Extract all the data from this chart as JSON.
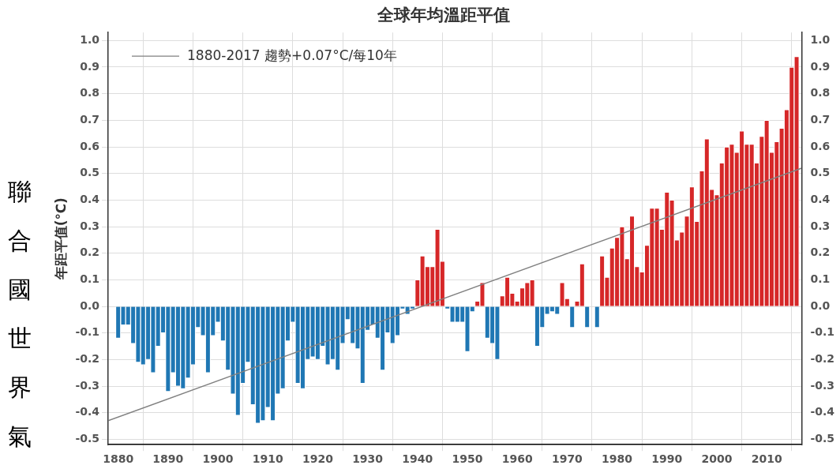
{
  "chart_data": {
    "type": "bar",
    "title": "全球年均溫距平值",
    "ylabel": "年距平值(℃)",
    "annotations": [
      "聯合國世界氣"
    ],
    "x": [
      1880,
      1881,
      1882,
      1883,
      1884,
      1885,
      1886,
      1887,
      1888,
      1889,
      1890,
      1891,
      1892,
      1893,
      1894,
      1895,
      1896,
      1897,
      1898,
      1899,
      1900,
      1901,
      1902,
      1903,
      1904,
      1905,
      1906,
      1907,
      1908,
      1909,
      1910,
      1911,
      1912,
      1913,
      1914,
      1915,
      1916,
      1917,
      1918,
      1919,
      1920,
      1921,
      1922,
      1923,
      1924,
      1925,
      1926,
      1927,
      1928,
      1929,
      1930,
      1931,
      1932,
      1933,
      1934,
      1935,
      1936,
      1937,
      1938,
      1939,
      1940,
      1941,
      1942,
      1943,
      1944,
      1945,
      1946,
      1947,
      1948,
      1949,
      1950,
      1951,
      1952,
      1953,
      1954,
      1955,
      1956,
      1957,
      1958,
      1959,
      1960,
      1961,
      1962,
      1963,
      1964,
      1965,
      1966,
      1967,
      1968,
      1969,
      1970,
      1971,
      1972,
      1973,
      1974,
      1975,
      1976,
      1977,
      1978,
      1979,
      1980,
      1981,
      1982,
      1983,
      1984,
      1985,
      1986,
      1987,
      1988,
      1989,
      1990,
      1991,
      1992,
      1993,
      1994,
      1995,
      1996,
      1997,
      1998,
      1999,
      2000,
      2001,
      2002,
      2003,
      2004,
      2005,
      2006,
      2007,
      2008,
      2009,
      2010,
      2011,
      2012,
      2013,
      2014,
      2015,
      2016
    ],
    "xlim": [
      1878,
      2017
    ],
    "xticks": [
      1880,
      1890,
      1900,
      1910,
      1920,
      1930,
      1940,
      1950,
      1960,
      1970,
      1980,
      1990,
      2000,
      2010
    ],
    "ylim": [
      -0.52,
      1.03
    ],
    "yticks": [
      {
        "value": -0.5,
        "label": "-0.5"
      },
      {
        "value": -0.4,
        "label": "-0.4"
      },
      {
        "value": -0.3,
        "label": "-0.3"
      },
      {
        "value": -0.2,
        "label": "-0.2"
      },
      {
        "value": -0.1,
        "label": "-0.1"
      },
      {
        "value": 0,
        "label": "0.0"
      },
      {
        "value": 0.1,
        "label": "0.1"
      },
      {
        "value": 0.2,
        "label": "0.2"
      },
      {
        "value": 0.3,
        "label": "0.3"
      },
      {
        "value": 0.4,
        "label": "0.4"
      },
      {
        "value": 0.5,
        "label": "0.5"
      },
      {
        "value": 0.6,
        "label": "0.6"
      },
      {
        "value": 0.7,
        "label": "0.7"
      },
      {
        "value": 0.8,
        "label": "0.8"
      },
      {
        "value": 0.9,
        "label": "0.9"
      },
      {
        "value": 1.0,
        "label": "1.0"
      }
    ],
    "y2lim": [
      -0.52,
      1.03
    ],
    "y2ticks": [
      {
        "value": -0.5,
        "label": "-0.5"
      },
      {
        "value": -0.4,
        "label": "-0.4"
      },
      {
        "value": -0.3,
        "label": "-0.3"
      },
      {
        "value": -0.2,
        "label": "-0.2"
      },
      {
        "value": -0.1,
        "label": "-0.1"
      },
      {
        "value": 0,
        "label": "0.0"
      },
      {
        "value": 0.1,
        "label": "0.1"
      },
      {
        "value": 0.2,
        "label": "0.2"
      },
      {
        "value": 0.3,
        "label": "0.3"
      },
      {
        "value": 0.4,
        "label": "0.4"
      },
      {
        "value": 0.5,
        "label": "0.5"
      },
      {
        "value": 0.6,
        "label": "0.6"
      },
      {
        "value": 0.7,
        "label": "0.7"
      },
      {
        "value": 0.8,
        "label": "0.8"
      },
      {
        "value": 0.9,
        "label": "0.9"
      },
      {
        "value": 1.0,
        "label": "1.0"
      }
    ],
    "grid": true,
    "legend": "top left",
    "series": [
      {
        "values": [
          -0.12,
          -0.07,
          -0.07,
          -0.14,
          -0.21,
          -0.22,
          -0.2,
          -0.25,
          -0.15,
          -0.1,
          -0.32,
          -0.25,
          -0.3,
          -0.31,
          -0.27,
          -0.22,
          -0.08,
          -0.11,
          -0.25,
          -0.11,
          -0.06,
          -0.13,
          -0.24,
          -0.33,
          -0.41,
          -0.29,
          -0.21,
          -0.37,
          -0.44,
          -0.43,
          -0.38,
          -0.43,
          -0.33,
          -0.31,
          -0.13,
          -0.06,
          -0.29,
          -0.31,
          -0.2,
          -0.19,
          -0.2,
          -0.15,
          -0.22,
          -0.2,
          -0.24,
          -0.14,
          -0.05,
          -0.14,
          -0.16,
          -0.29,
          -0.09,
          -0.07,
          -0.12,
          -0.24,
          -0.1,
          -0.14,
          -0.11,
          -0.01,
          -0.03,
          -0.01,
          0.1,
          0.19,
          0.15,
          0.15,
          0.29,
          0.17,
          -0.01,
          -0.06,
          -0.06,
          -0.06,
          -0.17,
          -0.02,
          0.02,
          0.09,
          -0.12,
          -0.14,
          -0.2,
          0.04,
          0.11,
          0.05,
          0.02,
          0.07,
          0.09,
          0.1,
          -0.15,
          -0.08,
          -0.03,
          -0.02,
          -0.03,
          0.09,
          0.03,
          -0.08,
          0.02,
          0.16,
          -0.08,
          0.0,
          -0.08,
          0.19,
          0.11,
          0.22,
          0.26,
          0.3,
          0.18,
          0.34,
          0.15,
          0.13,
          0.23,
          0.37,
          0.37,
          0.29,
          0.43,
          0.4,
          0.25,
          0.28,
          0.34,
          0.45,
          0.32,
          0.51,
          0.63,
          0.44,
          0.42,
          0.54,
          0.6,
          0.61,
          0.58,
          0.66,
          0.61,
          0.61,
          0.54,
          0.64,
          0.7,
          0.58,
          0.62,
          0.67,
          0.74,
          0.9,
          0.94
        ],
        "colors": [
          "#1f77b4",
          "#1f77b4",
          "#1f77b4",
          "#1f77b4",
          "#1f77b4",
          "#1f77b4",
          "#1f77b4",
          "#1f77b4",
          "#1f77b4",
          "#1f77b4",
          "#1f77b4",
          "#1f77b4",
          "#1f77b4",
          "#1f77b4",
          "#1f77b4",
          "#1f77b4",
          "#1f77b4",
          "#1f77b4",
          "#1f77b4",
          "#1f77b4",
          "#1f77b4",
          "#1f77b4",
          "#1f77b4",
          "#1f77b4",
          "#1f77b4",
          "#1f77b4",
          "#1f77b4",
          "#1f77b4",
          "#1f77b4",
          "#1f77b4",
          "#1f77b4",
          "#1f77b4",
          "#1f77b4",
          "#1f77b4",
          "#1f77b4",
          "#1f77b4",
          "#1f77b4",
          "#1f77b4",
          "#1f77b4",
          "#1f77b4",
          "#1f77b4",
          "#1f77b4",
          "#1f77b4",
          "#1f77b4",
          "#1f77b4",
          "#1f77b4",
          "#1f77b4",
          "#1f77b4",
          "#1f77b4",
          "#1f77b4",
          "#1f77b4",
          "#1f77b4",
          "#1f77b4",
          "#1f77b4",
          "#1f77b4",
          "#1f77b4",
          "#1f77b4",
          "#1f77b4",
          "#1f77b4",
          "#1f77b4",
          "#d62728",
          "#d62728",
          "#d62728",
          "#d62728",
          "#d62728",
          "#d62728",
          "#1f77b4",
          "#1f77b4",
          "#1f77b4",
          "#1f77b4",
          "#1f77b4",
          "#1f77b4",
          "#d62728",
          "#d62728",
          "#1f77b4",
          "#1f77b4",
          "#1f77b4",
          "#d62728",
          "#d62728",
          "#d62728",
          "#d62728",
          "#d62728",
          "#d62728",
          "#d62728",
          "#1f77b4",
          "#1f77b4",
          "#1f77b4",
          "#1f77b4",
          "#1f77b4",
          "#d62728",
          "#d62728",
          "#1f77b4",
          "#d62728",
          "#d62728",
          "#1f77b4",
          "#1f77b4",
          "#1f77b4",
          "#d62728",
          "#d62728",
          "#d62728",
          "#d62728",
          "#d62728",
          "#d62728",
          "#d62728",
          "#d62728",
          "#d62728",
          "#d62728",
          "#d62728",
          "#d62728",
          "#d62728",
          "#d62728",
          "#d62728",
          "#d62728",
          "#d62728",
          "#d62728",
          "#d62728",
          "#d62728",
          "#d62728",
          "#d62728",
          "#d62728",
          "#d62728",
          "#d62728",
          "#d62728",
          "#d62728",
          "#d62728",
          "#d62728",
          "#d62728",
          "#d62728",
          "#d62728",
          "#d62728",
          "#d62728",
          "#d62728",
          "#d62728",
          "#d62728",
          "#d62728",
          "#d62728",
          "#d62728"
        ]
      },
      {
        "type": "line",
        "name": "1880-2017 趨勢+0.07°C/每10年",
        "color": "#808080",
        "x": [
          1878,
          2017
        ],
        "values": [
          -0.43,
          0.52
        ],
        "marker": "none"
      }
    ]
  }
}
